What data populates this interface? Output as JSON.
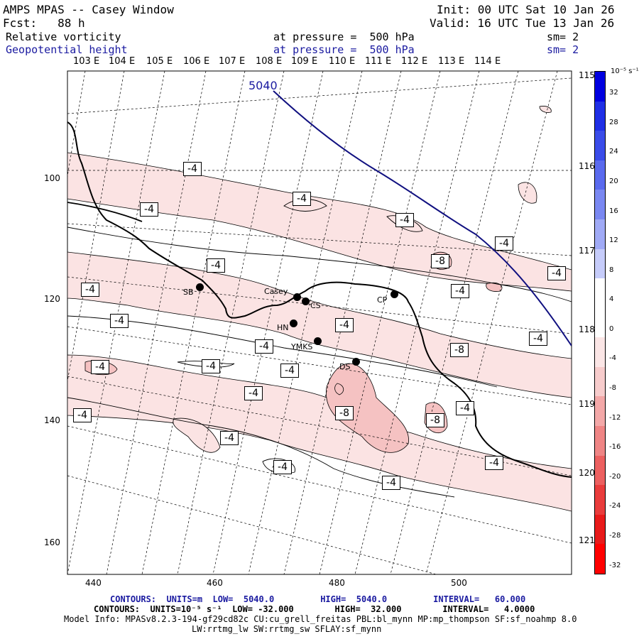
{
  "header": {
    "title": "AMPS MPAS -- Casey Window",
    "forecast": "Fcst:   88 h",
    "init": "Init: 00 UTC Sat 10 Jan 26",
    "valid": "Valid: 16 UTC Tue 13 Jan 26",
    "field1_name": "Relative vorticity",
    "field1_level": "at pressure =  500 hPa",
    "field1_smooth": "sm= 2",
    "field2_name": "Geopotential height",
    "field2_level": "at pressure =  500 hPa",
    "field2_smooth": "sm= 2"
  },
  "map": {
    "lon_labels": [
      "103 E",
      "104 E",
      "105 E",
      "106 E",
      "107 E",
      "108 E",
      "109 E",
      "110 E",
      "111 E",
      "112 E",
      "113 E",
      "114 E"
    ],
    "lat_labels_right": [
      "115 E",
      "116 E",
      "117 E",
      "118 E",
      "119 E",
      "120 E",
      "121 E"
    ],
    "y_axis": [
      "100",
      "120",
      "140",
      "160"
    ],
    "x_axis": [
      "440",
      "460",
      "480",
      "500"
    ],
    "height_contour_label": "5040",
    "stations": [
      {
        "name": "SB"
      },
      {
        "name": "Casey"
      },
      {
        "name": "CS"
      },
      {
        "name": "CP"
      },
      {
        "name": "HN"
      },
      {
        "name": "YMKS"
      },
      {
        "name": "DS"
      }
    ],
    "contour_labels": [
      "-4",
      "-4",
      "-4",
      "-4",
      "-4",
      "-8",
      "-4",
      "-4",
      "-4",
      "-4",
      "-4",
      "-4",
      "-4",
      "-4",
      "-8",
      "-4",
      "-4",
      "-4",
      "-8",
      "-8",
      "-4",
      "-4",
      "-4",
      "-4",
      "-4",
      "-4",
      "-4"
    ]
  },
  "colorbar": {
    "unit": "10⁻⁵ s⁻¹",
    "ticks": [
      "32",
      "28",
      "24",
      "20",
      "16",
      "12",
      "8",
      "4",
      "0",
      "-4",
      "-8",
      "-12",
      "-16",
      "-20",
      "-24",
      "-28",
      "-32"
    ],
    "colors": [
      "#0000e0",
      "#1f2fe6",
      "#3a4ce9",
      "#5a6aee",
      "#7a88f2",
      "#a0aaf6",
      "#c6ccfa",
      "#ffffff",
      "#ffffff",
      "#fbe6e6",
      "#f7cccc",
      "#f3a8a8",
      "#ef8585",
      "#ec6060",
      "#e93c3c",
      "#e81a1a",
      "#ff0000"
    ]
  },
  "footer": {
    "line1": "CONTOURS:  UNITS=m  LOW=  5040.0         HIGH=  5040.0         INTERVAL=   60.000",
    "line2": "CONTOURS:  UNITS=10⁻⁵ s⁻¹  LOW= -32.000        HIGH=  32.000        INTERVAL=   4.0000",
    "line3": "Model Info: MPASv8.2.3-194-gf29cd82c CU:cu_grell_freitas PBL:bl_mynn MP:mp_thompson SF:sf_noahmp 8.0",
    "line4": "LW:rrtmg_lw SW:rrtmg_sw SFLAY:sf_mynn"
  }
}
